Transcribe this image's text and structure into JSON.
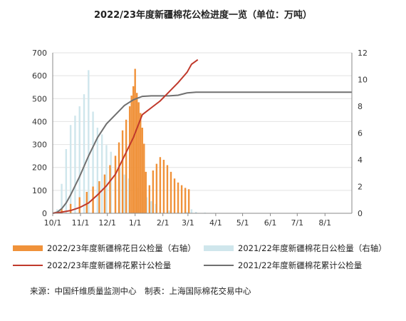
{
  "title": "2022/23年度新疆棉花公检进度一览（单位：万吨）",
  "source": "来源：中国纤维质量监测中心　制表：上海国际棉花交易中心",
  "colors": {
    "orange": "#f0923a",
    "lightblue": "#cfe6ec",
    "red": "#c0392b",
    "gray": "#707070",
    "axis": "#888888",
    "grid": "#e2e2e2"
  },
  "legend": [
    {
      "label": "2022/23年度新疆棉花日公检量（右轴）",
      "kind": "bar",
      "color": "#f0923a"
    },
    {
      "label": "2021/22年度新疆棉花日公检量（右轴）",
      "kind": "bar",
      "color": "#cfe6ec"
    },
    {
      "label": "2022/23年度新疆棉花累计公检量",
      "kind": "line",
      "color": "#c0392b"
    },
    {
      "label": "2021/22年度新疆棉花累计公检量",
      "kind": "line",
      "color": "#707070"
    }
  ],
  "chart_data": {
    "type": "bar+line",
    "x_ticks": [
      "10/1",
      "11/1",
      "12/1",
      "1/1",
      "2/1",
      "3/1",
      "4/1",
      "5/1",
      "6/1",
      "7/1",
      "8/1"
    ],
    "x_tick_days": [
      0,
      31,
      61,
      92,
      123,
      151,
      182,
      212,
      243,
      273,
      304
    ],
    "x_range_days": [
      0,
      334
    ],
    "left_axis": {
      "ticks": [
        0,
        100,
        200,
        300,
        400,
        500,
        600,
        700
      ],
      "range": [
        0,
        700
      ]
    },
    "right_axis": {
      "ticks": [
        0,
        2,
        4,
        6,
        8,
        10,
        12
      ],
      "range": [
        0,
        12
      ]
    },
    "grid": true,
    "series": [
      {
        "name": "2022/23年度新疆棉花日公检量（右轴）",
        "axis": "right",
        "type": "bar",
        "x": [
          0,
          10,
          20,
          30,
          38,
          45,
          52,
          58,
          64,
          70,
          74,
          78,
          82,
          86,
          88,
          90,
          92,
          94,
          96,
          98,
          100,
          102,
          104,
          108,
          112,
          116,
          120,
          124,
          128,
          132,
          136,
          140,
          144,
          148,
          152
        ],
        "y": [
          0,
          0.3,
          0.7,
          1.2,
          1.6,
          2.0,
          2.4,
          2.9,
          3.6,
          4.3,
          5.3,
          6.2,
          7.0,
          8.0,
          8.8,
          9.5,
          10.8,
          9.0,
          8.3,
          7.5,
          6.4,
          5.2,
          3.1,
          2.1,
          3.2,
          3.7,
          4.2,
          4.0,
          3.6,
          3.1,
          2.6,
          2.3,
          2.1,
          1.9,
          1.8
        ]
      },
      {
        "name": "2021/22年度新疆棉花日公检量（右轴）",
        "axis": "right",
        "type": "bar",
        "x": [
          5,
          10,
          15,
          20,
          25,
          30,
          35,
          40,
          45,
          50,
          55,
          60,
          65,
          70,
          75,
          80,
          85,
          90,
          95,
          100,
          105,
          110,
          115,
          120,
          130,
          140,
          150,
          155,
          160,
          170,
          180
        ],
        "y": [
          0.3,
          2.2,
          4.8,
          6.6,
          7.3,
          8.0,
          8.9,
          10.7,
          7.6,
          6.4,
          5.9,
          5.1,
          4.6,
          4.0,
          3.4,
          2.9,
          2.6,
          2.3,
          1.9,
          1.6,
          1.2,
          0.9,
          0.7,
          0.5,
          0.2,
          0.1,
          0.1,
          0.3,
          0.1,
          0.05,
          0.03
        ]
      },
      {
        "name": "2022/23年度新疆棉花累计公检量",
        "axis": "left",
        "type": "line",
        "x": [
          0,
          10,
          20,
          30,
          40,
          50,
          60,
          70,
          80,
          90,
          100,
          110,
          120,
          130,
          140,
          150,
          155,
          162
        ],
        "y": [
          0,
          5,
          12,
          25,
          45,
          80,
          120,
          170,
          250,
          330,
          430,
          460,
          490,
          530,
          570,
          615,
          650,
          670
        ]
      },
      {
        "name": "2021/22年度新疆棉花累计公检量",
        "axis": "left",
        "type": "line",
        "x": [
          0,
          5,
          10,
          15,
          20,
          30,
          40,
          50,
          60,
          70,
          80,
          90,
          100,
          110,
          120,
          130,
          140,
          150,
          160,
          170,
          180,
          200,
          250,
          334
        ],
        "y": [
          0,
          5,
          20,
          45,
          80,
          160,
          250,
          330,
          390,
          430,
          470,
          495,
          510,
          512,
          512,
          512,
          515,
          525,
          528,
          528,
          528,
          528,
          528,
          528
        ]
      }
    ]
  }
}
